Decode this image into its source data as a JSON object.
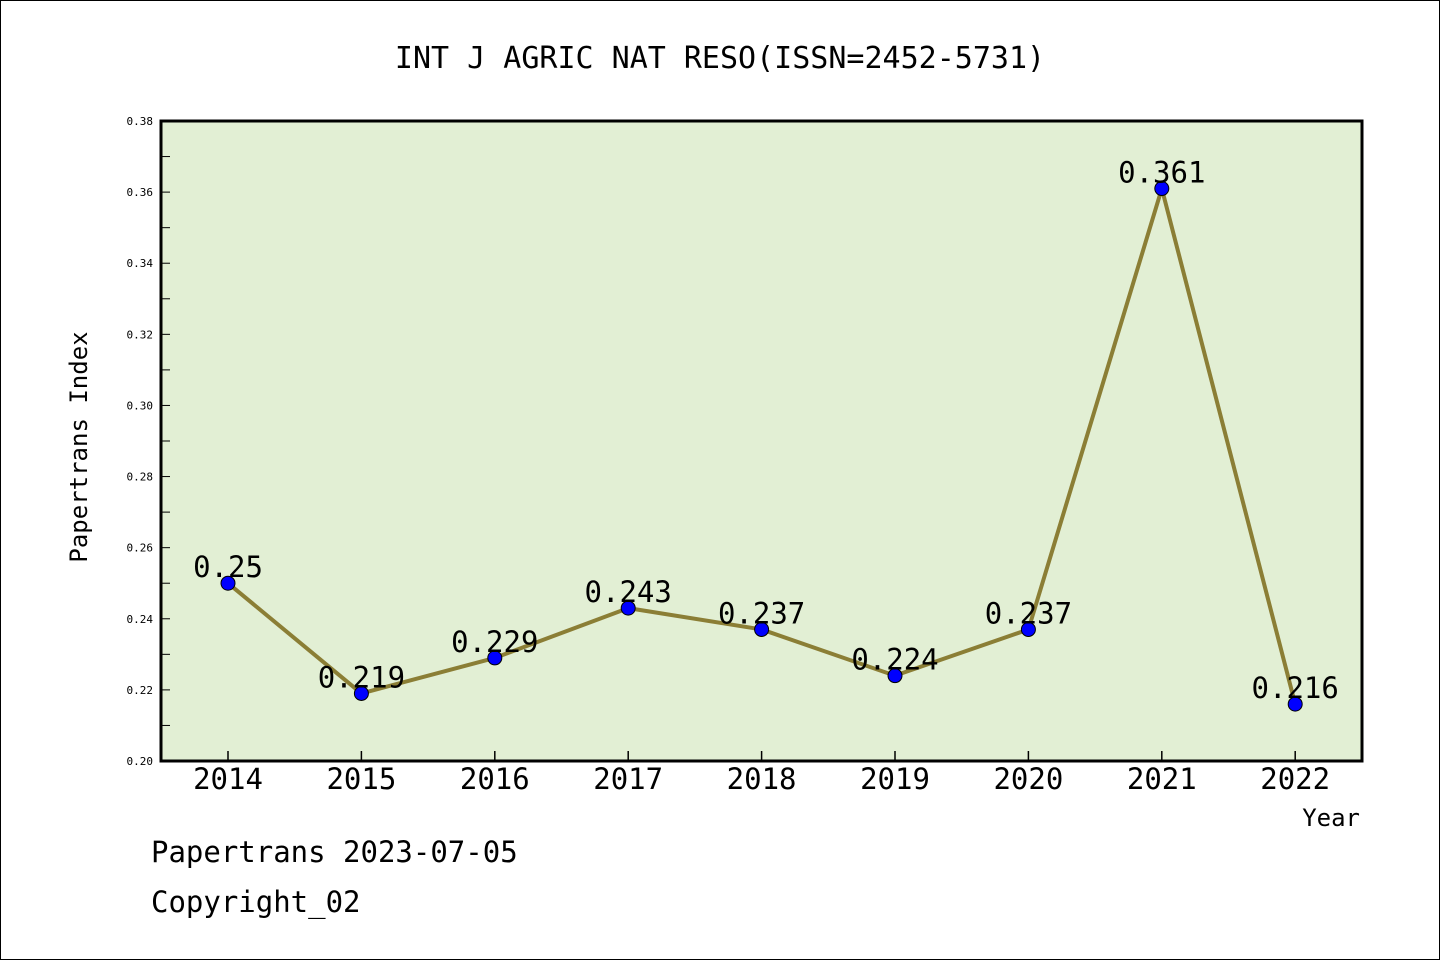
{
  "chart_data": {
    "type": "line",
    "title": "INT J AGRIC NAT RESO(ISSN=2452-5731)",
    "xlabel": "Year",
    "ylabel": "Papertrans Index",
    "categories": [
      "2014",
      "2015",
      "2016",
      "2017",
      "2018",
      "2019",
      "2020",
      "2021",
      "2022"
    ],
    "series": [
      {
        "values": [
          0.25,
          0.219,
          0.229,
          0.243,
          0.237,
          0.224,
          0.237,
          0.361,
          0.216
        ],
        "labels": [
          "0.25",
          "0.219",
          "0.229",
          "0.243",
          "0.237",
          "0.224",
          "0.237",
          "0.361",
          "0.216"
        ]
      }
    ],
    "ylim": [
      0.2,
      0.38
    ],
    "yticks": [
      "0.20",
      "0.22",
      "0.24",
      "0.26",
      "0.28",
      "0.30",
      "0.32",
      "0.34",
      "0.36",
      "0.38"
    ],
    "grid": false,
    "colors": {
      "plot_bg": "#e2efd4",
      "line": "#8b7e35",
      "marker": "#0000ff"
    }
  },
  "footer": {
    "line1": "Papertrans 2023-07-05",
    "line2": "Copyright_02"
  }
}
